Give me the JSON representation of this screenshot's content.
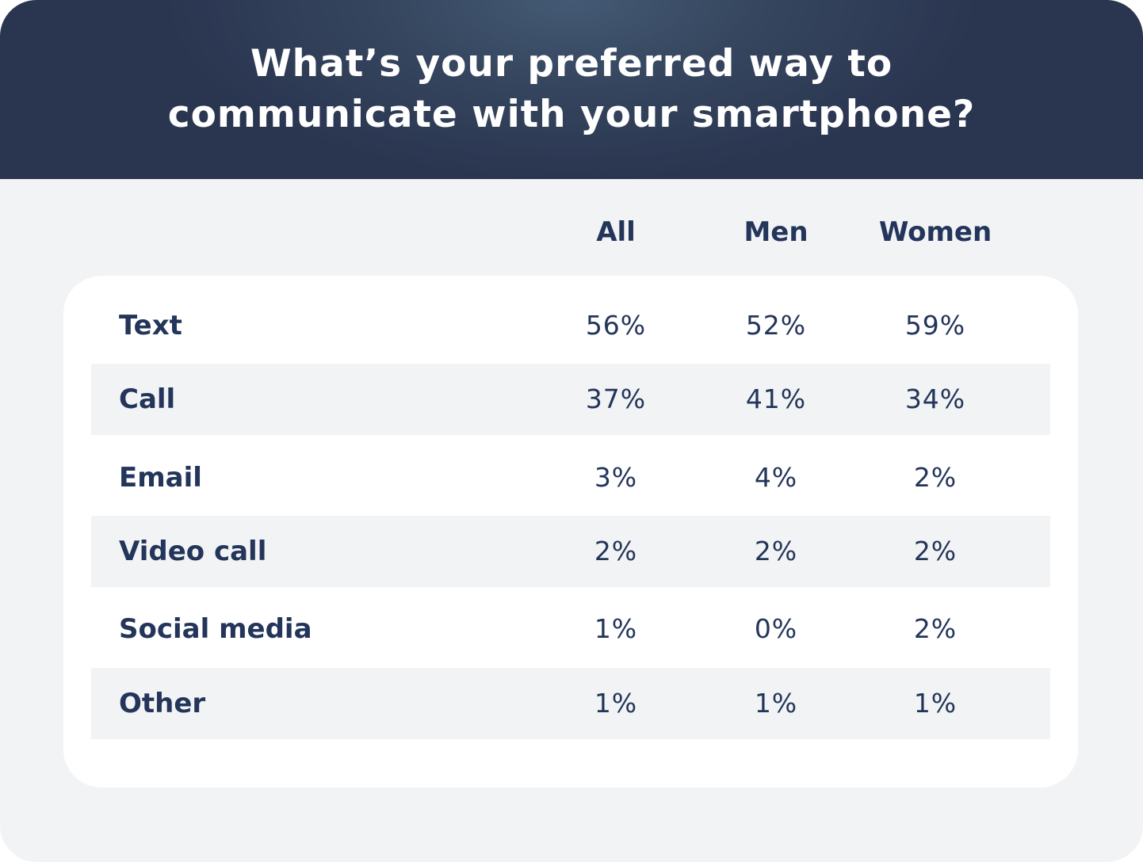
{
  "title_lines": [
    "What’s your preferred way to",
    "communicate with your smartphone?"
  ],
  "colors": {
    "header_dark": "#2a3550",
    "header_light": "#445a74",
    "text": "#23355a",
    "background": "#f2f3f5",
    "panel": "#ffffff"
  },
  "chart_data": {
    "type": "table",
    "title": "What’s your preferred way to communicate with your smartphone?",
    "columns": [
      "All",
      "Men",
      "Women"
    ],
    "rows": [
      {
        "label": "Text",
        "values": [
          "56%",
          "52%",
          "59%"
        ]
      },
      {
        "label": "Call",
        "values": [
          "37%",
          "41%",
          "34%"
        ]
      },
      {
        "label": "Email",
        "values": [
          "3%",
          "4%",
          "2%"
        ]
      },
      {
        "label": "Video call",
        "values": [
          "2%",
          "2%",
          "2%"
        ]
      },
      {
        "label": "Social media",
        "values": [
          "1%",
          "0%",
          "2%"
        ]
      },
      {
        "label": "Other",
        "values": [
          "1%",
          "1%",
          "1%"
        ]
      }
    ]
  }
}
